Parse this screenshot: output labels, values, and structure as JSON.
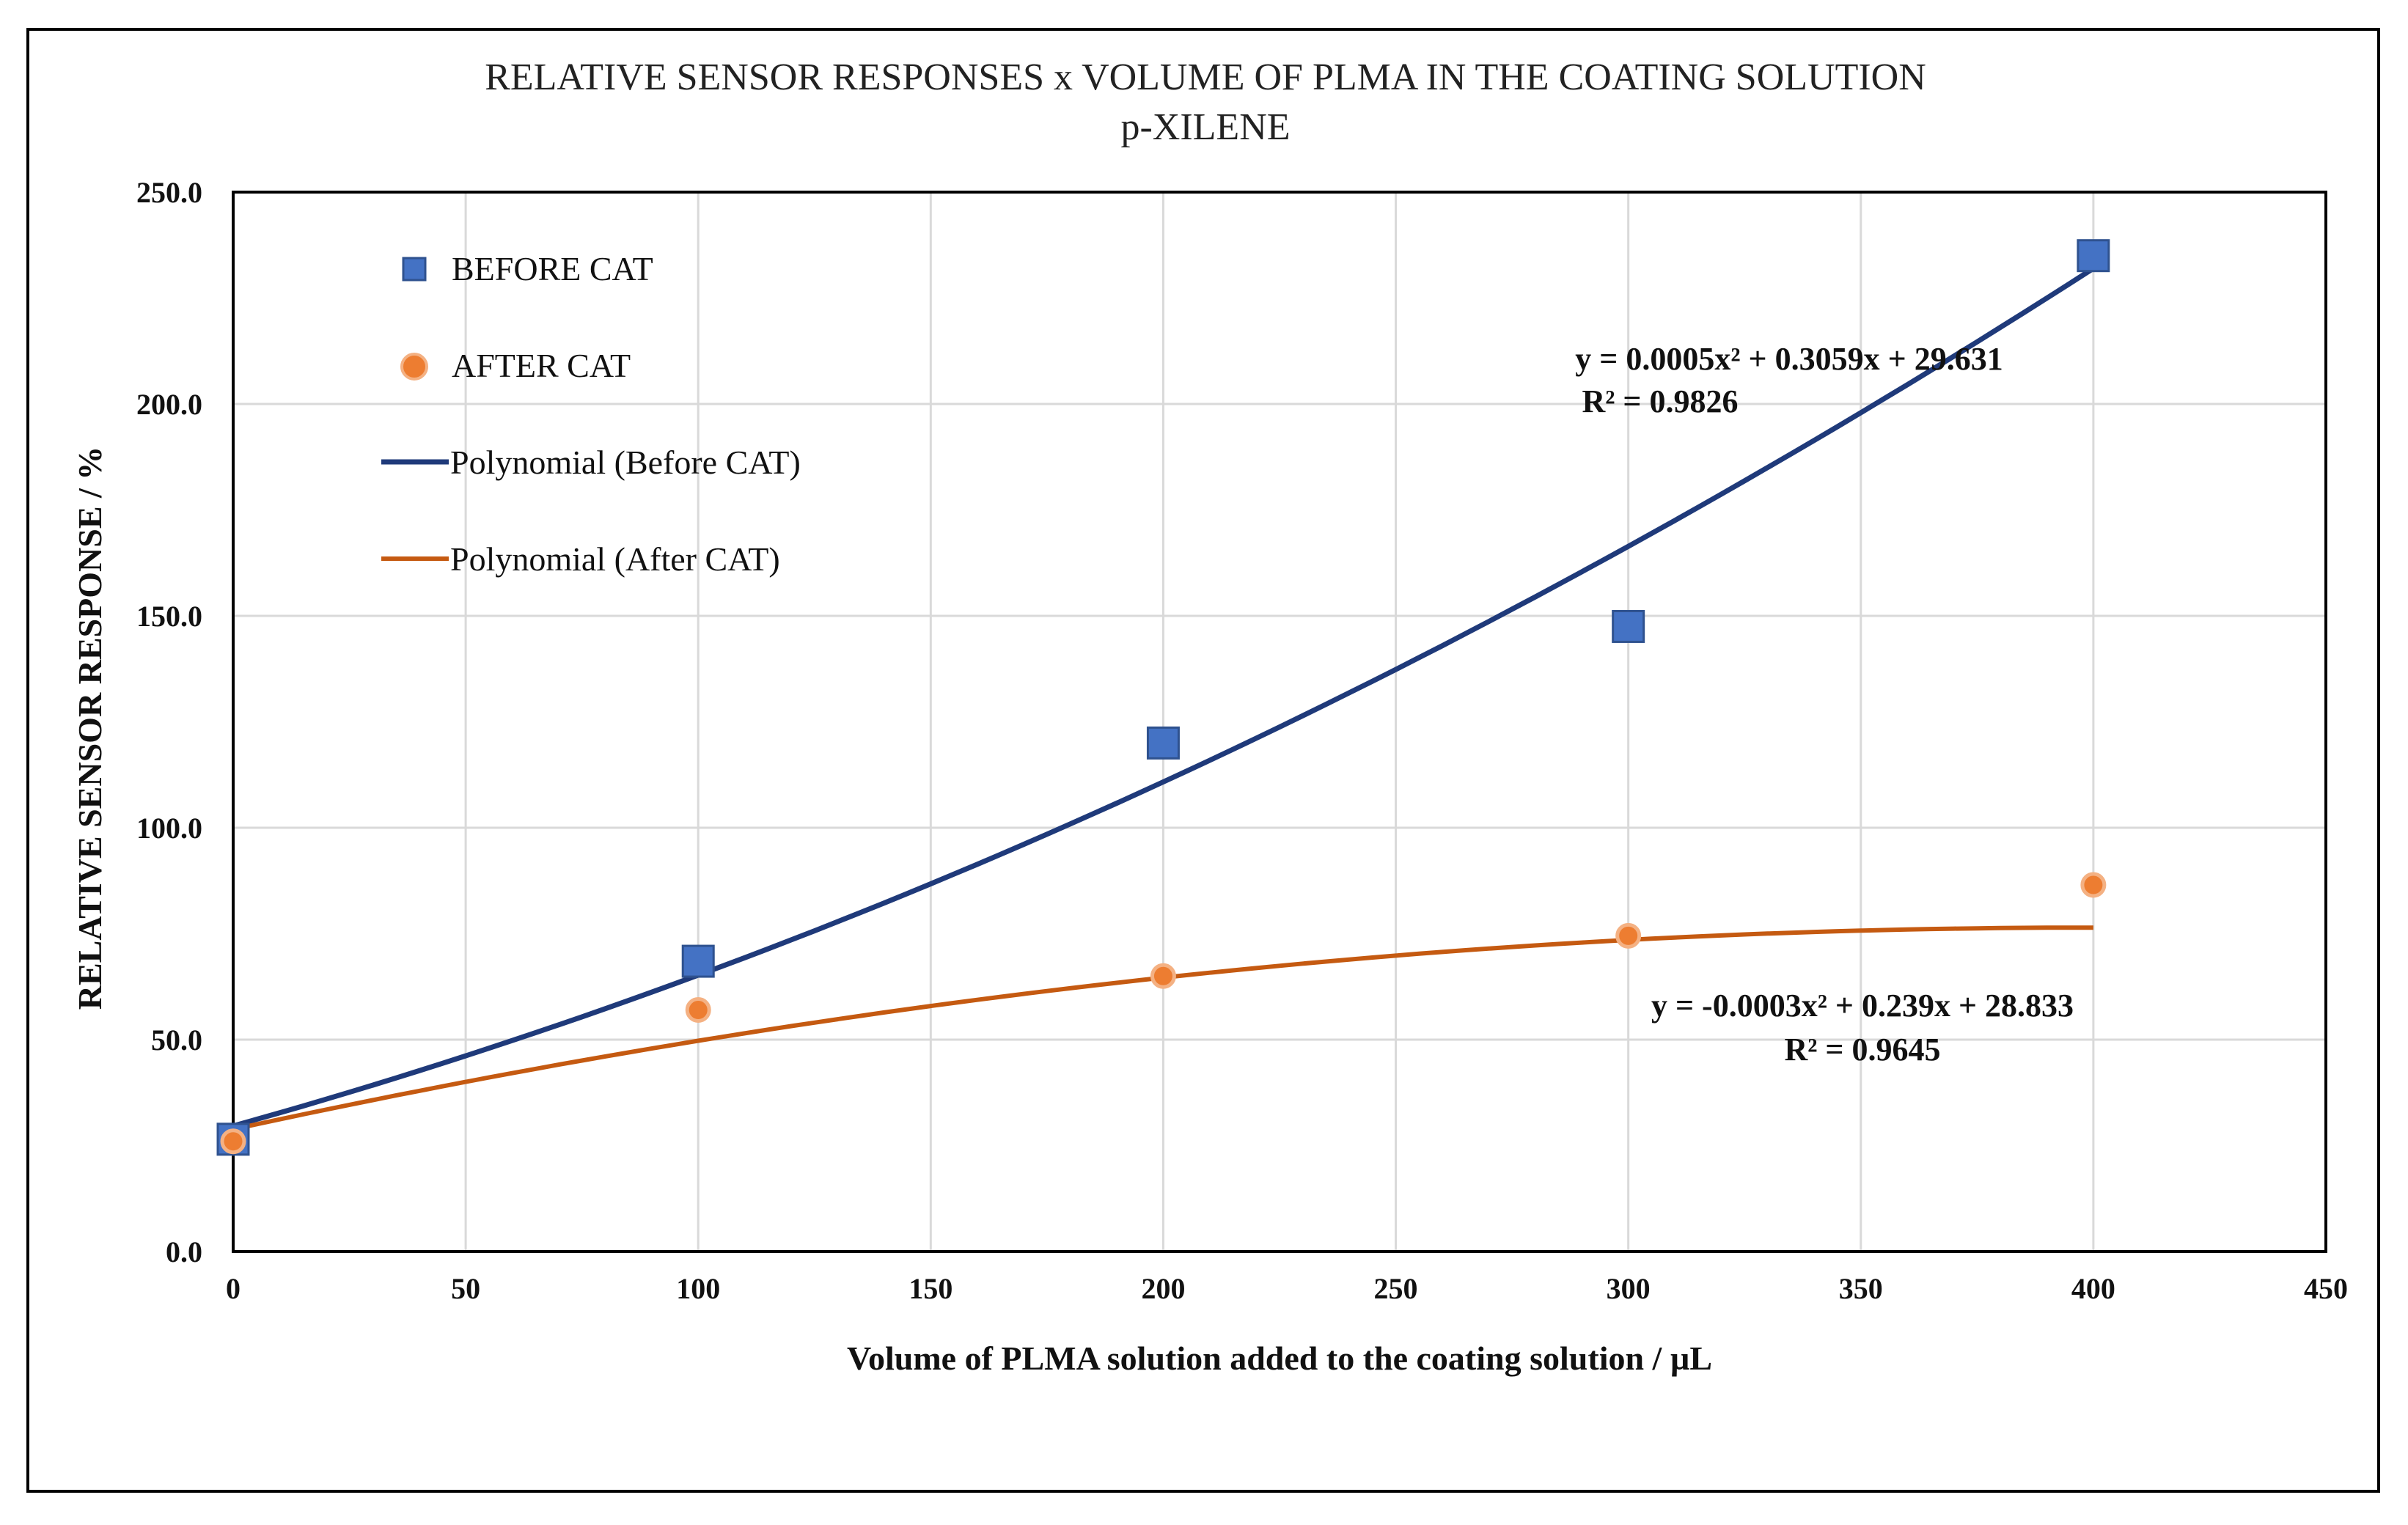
{
  "chart_data": {
    "type": "scatter",
    "title": "RELATIVE SENSOR RESPONSES x VOLUME OF PLMA IN THE COATING SOLUTION",
    "subtitle": "p-XILENE",
    "xlabel": "Volume of PLMA solution added to the coating solution  / µL",
    "ylabel": "RELATIVE SENSOR RESPONSE / %",
    "xlim": [
      0,
      450
    ],
    "ylim": [
      0,
      250
    ],
    "xticks": [
      0,
      50,
      100,
      150,
      200,
      250,
      300,
      350,
      400,
      450
    ],
    "xtick_labels": [
      "0",
      "50",
      "100",
      "150",
      "200",
      "250",
      "300",
      "350",
      "400",
      "450"
    ],
    "yticks": [
      0,
      50,
      100,
      150,
      200,
      250
    ],
    "ytick_labels": [
      "0.0",
      "50.0",
      "100.0",
      "150.0",
      "200.0",
      "250.0"
    ],
    "grid": true,
    "legend_position": "top-left",
    "series": [
      {
        "name": "BEFORE CAT",
        "kind": "points",
        "marker": "square",
        "color": "#4472C4",
        "x": [
          0,
          100,
          200,
          300,
          400
        ],
        "y": [
          26.5,
          68.5,
          120.0,
          147.5,
          235.0
        ]
      },
      {
        "name": "AFTER CAT",
        "kind": "points",
        "marker": "circle",
        "color": "#ED7D31",
        "x": [
          0,
          100,
          200,
          300,
          400
        ],
        "y": [
          26.0,
          57.0,
          65.0,
          74.5,
          86.5
        ]
      },
      {
        "name": "Polynomial (Before CAT)",
        "kind": "trendline",
        "color": "#1F3A7A",
        "coefficients": [
          0.0005,
          0.3059,
          29.631
        ],
        "x_range": [
          0,
          400
        ],
        "equation": "y = 0.0005x² + 0.3059x + 29.631",
        "r2": "R² = 0.9826"
      },
      {
        "name": "Polynomial (After CAT)",
        "kind": "trendline",
        "color": "#C55A11",
        "coefficients": [
          -0.0003,
          0.239,
          28.833
        ],
        "x_range": [
          0,
          400
        ],
        "equation": "y = -0.0003x² + 0.239x + 28.833",
        "r2": "R² = 0.9645"
      }
    ]
  }
}
